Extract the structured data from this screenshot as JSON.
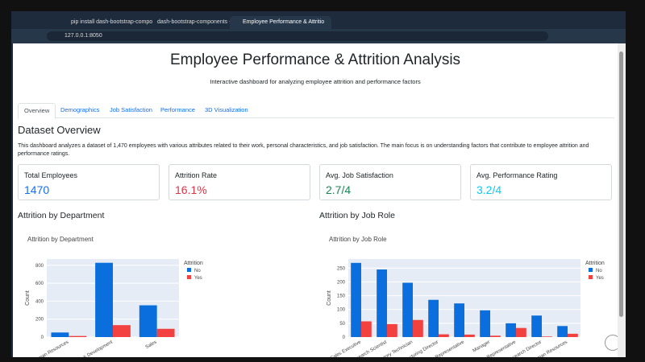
{
  "browser": {
    "tabs": [
      "pip install dash-bootstrap-compo",
      "dash-bootstrap-components - Py",
      "Employee Performance & Attritio"
    ],
    "url": "127.0.0.1:8050"
  },
  "header": {
    "title": "Employee Performance & Attrition Analysis",
    "subtitle": "Interactive dashboard for analyzing employee attrition and performance factors"
  },
  "nav_tabs": [
    "Overview",
    "Demographics",
    "Job Satisfaction",
    "Performance",
    "3D Visualization"
  ],
  "section": {
    "heading": "Dataset Overview",
    "text": "This dashboard analyzes a dataset of 1,470 employees with various attributes related to their work, personal characteristics, and job satisfaction. The main focus is on understanding factors that contribute to employee attrition and performance ratings."
  },
  "cards": [
    {
      "label": "Total Employees",
      "value": "1470",
      "color": "#0d6efd"
    },
    {
      "label": "Attrition Rate",
      "value": "16.1%",
      "color": "#dc3545"
    },
    {
      "label": "Avg. Job Satisfaction",
      "value": "2.7/4",
      "color": "#198754"
    },
    {
      "label": "Avg. Performance Rating",
      "value": "3.2/4",
      "color": "#0dcaf0"
    }
  ],
  "charts": [
    {
      "heading": "Attrition by Department",
      "chart_data": {
        "type": "bar",
        "title": "Attrition by Department",
        "y_label": "Count",
        "legend_title": "Attrition",
        "categories": [
          "Human Resources",
          "Research & Development",
          "Sales"
        ],
        "series": [
          {
            "name": "No",
            "color": "#0a6fdc",
            "values": [
              51,
              828,
              354
            ]
          },
          {
            "name": "Yes",
            "color": "#f2413f",
            "values": [
              12,
              133,
              92
            ]
          }
        ],
        "ylim": [
          0,
          870
        ],
        "yticks": [
          0,
          200,
          400,
          600,
          800
        ],
        "grid": true
      }
    },
    {
      "heading": "Attrition by Job Role",
      "chart_data": {
        "type": "bar",
        "title": "Attrition by Job Role",
        "y_label": "Count",
        "legend_title": "Attrition",
        "categories": [
          "Sales Executive",
          "Research Scientist",
          "Laboratory Technician",
          "Manufacturing Director",
          "Healthcare Representative",
          "Manager",
          "Sales Representative",
          "Research Director",
          "Human Resources"
        ],
        "series": [
          {
            "name": "No",
            "color": "#0a6fdc",
            "values": [
              269,
              245,
              197,
              135,
              122,
              97,
              50,
              78,
              40
            ]
          },
          {
            "name": "Yes",
            "color": "#f2413f",
            "values": [
              57,
              47,
              62,
              10,
              9,
              5,
              33,
              2,
              12
            ]
          }
        ],
        "ylim": [
          0,
          283
        ],
        "yticks": [
          0,
          50,
          100,
          150,
          200,
          250
        ],
        "grid": true
      }
    }
  ]
}
